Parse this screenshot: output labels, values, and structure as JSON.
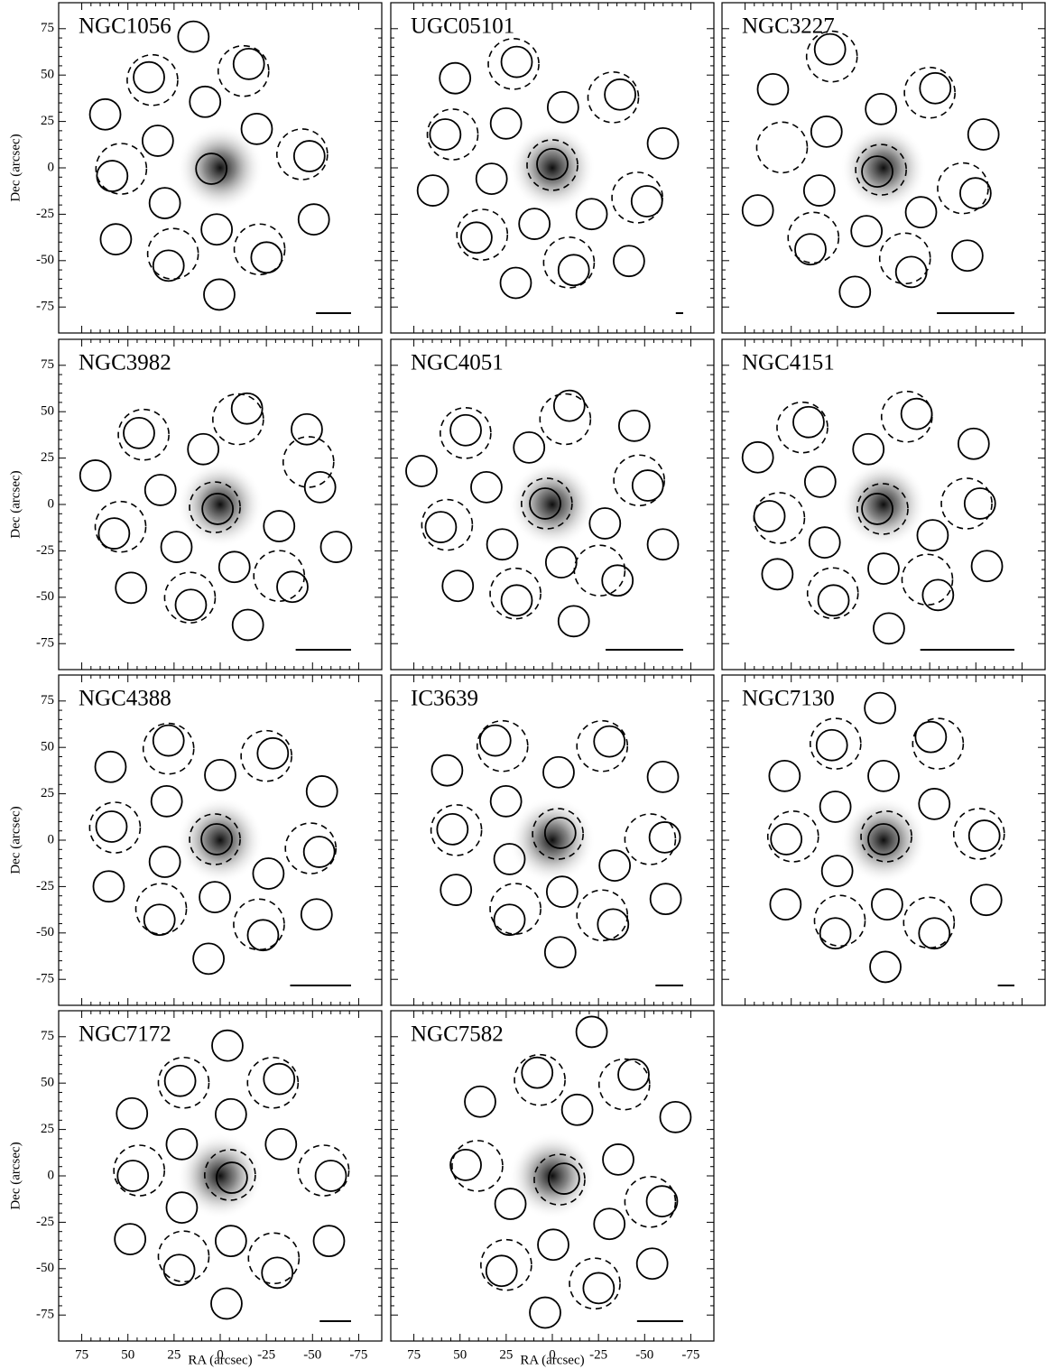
{
  "chart_data": [
    {
      "type": "scatter",
      "title": "NGC1056",
      "ylabel": "Dec (arcsec)",
      "xlim": [
        87.5,
        -87.5
      ],
      "ylim": [
        -89,
        89
      ],
      "xticks": [
        75,
        50,
        25,
        0,
        -25,
        -50,
        -75
      ],
      "yticks": [
        75,
        50,
        25,
        0,
        -25,
        -50,
        -75
      ],
      "aperture_radius": 8.3,
      "background_radius": 13.7,
      "scalebar": 19,
      "apertures": {
        "x": [
          14.5,
          -15.5,
          38.6,
          8.2,
          62.3,
          -19.8,
          33.8,
          -48.3,
          58.5,
          4.8,
          30,
          -50.7,
          56.5,
          1.9,
          -25.1,
          28,
          0.5
        ],
        "y": [
          70.7,
          56,
          48.8,
          35.6,
          28.8,
          21,
          14.6,
          6.3,
          -4.4,
          -0.5,
          -19,
          -27.8,
          -38.5,
          -33.2,
          -48.3,
          -52.7,
          -68.3
        ]
      },
      "backgrounds": {
        "x": [
          36.7,
          -12.6,
          53.6,
          -44.4,
          25.6,
          -21.3
        ],
        "y": [
          47.3,
          52.2,
          -0.5,
          7.3,
          -46.3,
          -43.9
        ]
      }
    },
    {
      "type": "scatter",
      "title": "UGC05101",
      "xlim": [
        87.5,
        -87.5
      ],
      "ylim": [
        -89,
        89
      ],
      "xticks": [
        75,
        50,
        25,
        0,
        -25,
        -50,
        -75
      ],
      "yticks": [
        75,
        50,
        25,
        0,
        -25,
        -50,
        -75
      ],
      "aperture_radius": 8.3,
      "background_radius": 13.7,
      "scalebar": 4,
      "apertures": {
        "x": [
          19.3,
          52.7,
          -5.8,
          25.1,
          -36.7,
          -59.9,
          58,
          0,
          64.7,
          32.9,
          -51.2,
          -21.3,
          9.7,
          41.1,
          -11.6,
          -41.5,
          19.8
        ],
        "y": [
          57.1,
          48.3,
          32.7,
          23.9,
          39.5,
          13.2,
          18,
          2,
          -12.2,
          -5.9,
          -18,
          -24.9,
          -30.2,
          -37.6,
          -55.1,
          -50.2,
          -62
        ]
      },
      "backgrounds": {
        "x": [
          21,
          -33,
          54,
          0,
          -46,
          38,
          -9
        ],
        "y": [
          56,
          38,
          18,
          1.5,
          -16,
          -36,
          -51
        ]
      }
    },
    {
      "type": "scatter",
      "title": "NGC3227",
      "xlim": [
        87.5,
        -87.5
      ],
      "ylim": [
        -89,
        89
      ],
      "xticks": [
        75,
        50,
        25,
        0,
        -25,
        -50,
        -75
      ],
      "yticks": [
        75,
        50,
        25,
        0,
        -25,
        -50,
        -75
      ],
      "aperture_radius": 8.3,
      "background_radius": 13.7,
      "scalebar": 42,
      "apertures": {
        "x": [
          29,
          59.9,
          1.4,
          30.9,
          -54.1,
          -28,
          3.4,
          68.1,
          34.8,
          -49.8,
          -20.3,
          9.2,
          39.6,
          -15,
          -45.4,
          15.5
        ],
        "y": [
          63.9,
          42.4,
          31.7,
          19.5,
          18,
          42.9,
          -2,
          -22.9,
          -12.2,
          -13.7,
          -23.9,
          -34.1,
          -43.9,
          -56.1,
          -47.3,
          -66.8
        ]
      },
      "backgrounds": {
        "x": [
          28,
          -25,
          55,
          1.4,
          -43,
          38,
          -11.6
        ],
        "y": [
          60,
          40.5,
          11,
          -1,
          -11,
          -37.6,
          -48.8
        ]
      }
    },
    {
      "type": "scatter",
      "title": "NGC3982",
      "ylabel": "Dec (arcsec)",
      "xlim": [
        87.5,
        -87.5
      ],
      "ylim": [
        -89,
        89
      ],
      "xticks": [
        75,
        50,
        25,
        0,
        -25,
        -50,
        -75
      ],
      "yticks": [
        75,
        50,
        25,
        0,
        -25,
        -50,
        -75
      ],
      "aperture_radius": 8.3,
      "background_radius": 13.7,
      "scalebar": 30,
      "apertures": {
        "x": [
          -14.5,
          44,
          -46.9,
          9.2,
          67.6,
          32.4,
          -54.1,
          1.4,
          57.5,
          -31.9,
          23.7,
          -62.8,
          -7.7,
          48.3,
          -39.1,
          15.9,
          -15
        ],
        "y": [
          51.7,
          38.5,
          40.5,
          29.8,
          15.6,
          7.8,
          9.3,
          -2.4,
          -15.6,
          -11.7,
          -22.9,
          -22.9,
          -33.7,
          -44.9,
          -44.4,
          -54.1,
          -64.9
        ]
      },
      "backgrounds": {
        "x": [
          -9.7,
          41.5,
          -47.8,
          2.9,
          54,
          -31.9,
          16.4
        ],
        "y": [
          45.9,
          37.6,
          22.9,
          -1.5,
          -12,
          -38.5,
          -50.2
        ]
      }
    },
    {
      "type": "scatter",
      "title": "NGC4051",
      "xlim": [
        87.5,
        -87.5
      ],
      "ylim": [
        -89,
        89
      ],
      "xticks": [
        75,
        50,
        25,
        0,
        -25,
        -50,
        -75
      ],
      "yticks": [
        75,
        50,
        25,
        0,
        -25,
        -50,
        -75
      ],
      "aperture_radius": 8.3,
      "background_radius": 13.7,
      "scalebar": 42,
      "apertures": {
        "x": [
          -9.2,
          46.9,
          -44.4,
          12.6,
          70.9,
          35.7,
          -51.7,
          3.9,
          60.4,
          -28.5,
          27.1,
          -59.9,
          -4.8,
          51.2,
          -35.3,
          19.3,
          -11.6
        ],
        "y": [
          53.2,
          40,
          42.4,
          30.7,
          18,
          9.3,
          10.2,
          0.5,
          -12.2,
          -10.2,
          -21.5,
          -21.5,
          -31.2,
          -43.9,
          -41,
          -51.7,
          -62.9
        ]
      },
      "backgrounds": {
        "x": [
          -7,
          47,
          -47,
          3,
          57,
          -25.6,
          20
        ],
        "y": [
          46,
          38.5,
          13,
          0.5,
          -11,
          -35.6,
          -48
        ]
      }
    },
    {
      "type": "scatter",
      "title": "NGC4151",
      "xlim": [
        87.5,
        -87.5
      ],
      "ylim": [
        -89,
        89
      ],
      "xticks": [
        75,
        50,
        25,
        0,
        -25,
        -50,
        -75
      ],
      "yticks": [
        75,
        50,
        25,
        0,
        -25,
        -50,
        -75
      ],
      "aperture_radius": 8.3,
      "background_radius": 13.7,
      "scalebar": 51,
      "apertures": {
        "x": [
          -17.9,
          40.6,
          -48.8,
          8.2,
          68.1,
          34.3,
          -52.2,
          3.4,
          61.8,
          -26.6,
          31.9,
          -56,
          0,
          57.5,
          -29.5,
          27.1,
          -2.9
        ],
        "y": [
          48.8,
          44.4,
          32.7,
          29.8,
          25.4,
          12.2,
          0.5,
          -2.4,
          -6.3,
          -16.6,
          -20.5,
          -33.2,
          -34.6,
          -37.6,
          -48.8,
          -51.7,
          -66.8
        ]
      },
      "backgrounds": {
        "x": [
          -12.6,
          44,
          -45,
          0.5,
          56.5,
          -23.7,
          27.5
        ],
        "y": [
          47.3,
          41.5,
          0.5,
          -2.4,
          -7.3,
          -40.5,
          -47.8
        ]
      }
    },
    {
      "type": "scatter",
      "title": "NGC4388",
      "ylabel": "Dec (arcsec)",
      "xlim": [
        87.5,
        -87.5
      ],
      "ylim": [
        -89,
        89
      ],
      "xticks": [
        75,
        50,
        25,
        0,
        -25,
        -50,
        -75
      ],
      "yticks": [
        75,
        50,
        25,
        0,
        -25,
        -50,
        -75
      ],
      "aperture_radius": 8.3,
      "background_radius": 13.7,
      "scalebar": 33,
      "apertures": {
        "x": [
          28,
          -28.5,
          59.4,
          0,
          -55.1,
          29,
          58.9,
          1.9,
          -53.6,
          30,
          -26.1,
          60.4,
          2.9,
          -52.2,
          32.9,
          -23.2,
          6.3
        ],
        "y": [
          53.7,
          46.8,
          39.5,
          35.1,
          26.3,
          21,
          7.3,
          0.5,
          -6.3,
          -11.7,
          -18,
          -24.9,
          -30.7,
          -40,
          -42.9,
          -51.2,
          -63.9
        ]
      },
      "backgrounds": {
        "x": [
          28,
          -25,
          57,
          2.9,
          -49,
          32,
          -21
        ],
        "y": [
          49.3,
          45.4,
          6.8,
          0.5,
          -4.4,
          -37,
          -45.4
        ]
      }
    },
    {
      "type": "scatter",
      "title": "IC3639",
      "xlim": [
        87.5,
        -87.5
      ],
      "ylim": [
        -89,
        89
      ],
      "xticks": [
        75,
        50,
        25,
        0,
        -25,
        -50,
        -75
      ],
      "yticks": [
        75,
        50,
        25,
        0,
        -25,
        -50,
        -75
      ],
      "aperture_radius": 8.3,
      "background_radius": 13.7,
      "scalebar": 15,
      "apertures": {
        "x": [
          30.9,
          -30.9,
          57,
          -3.4,
          -59.9,
          25.1,
          54.1,
          -4.3,
          -60.9,
          23.2,
          -33.8,
          52.2,
          -5.3,
          -61.4,
          23.2,
          -32.9,
          -4.3
        ],
        "y": [
          53.7,
          53.2,
          37.6,
          36.6,
          34.1,
          21,
          5.9,
          3.9,
          1.5,
          -10.2,
          -13.7,
          -26.8,
          -27.8,
          -31.7,
          -42.9,
          -45.4,
          -60.4
        ]
      },
      "backgrounds": {
        "x": [
          27,
          -27,
          52,
          -3,
          -53,
          20,
          -27
        ],
        "y": [
          50.7,
          50.7,
          5.4,
          3.4,
          0.5,
          -37,
          -40.5
        ]
      }
    },
    {
      "type": "scatter",
      "title": "NGC7130",
      "xlim": [
        87.5,
        -87.5
      ],
      "ylim": [
        -89,
        89
      ],
      "xticks": [
        75,
        50,
        25,
        0,
        -25,
        -50,
        -75
      ],
      "yticks": [
        75,
        50,
        25,
        0,
        -25,
        -50,
        -75
      ],
      "aperture_radius": 8.3,
      "background_radius": 13.7,
      "scalebar": 9,
      "apertures": {
        "x": [
          1.9,
          28,
          -25.6,
          53.6,
          0,
          26.1,
          -27.5,
          52.7,
          0,
          -54.6,
          25.1,
          53.1,
          -1.9,
          -55.6,
          26.1,
          -27.5,
          -1
        ],
        "y": [
          71.2,
          51.2,
          55.6,
          34.6,
          34.6,
          18,
          19.5,
          0.5,
          0.5,
          2.4,
          -16.6,
          -34.6,
          -34.6,
          -32.2,
          -50.2,
          -50.2,
          -68.3
        ]
      },
      "backgrounds": {
        "x": [
          26,
          -29.5,
          49,
          -1.5,
          -51.7,
          23.7,
          -24.6
        ],
        "y": [
          52,
          52,
          2,
          2,
          3.4,
          -43.4,
          -44.4
        ]
      }
    },
    {
      "type": "scatter",
      "title": "NGC7172",
      "xlabel": "RA (arcsec)",
      "ylabel": "Dec (arcsec)",
      "xlim": [
        87.5,
        -87.5
      ],
      "ylim": [
        -89,
        89
      ],
      "xticks": [
        75,
        50,
        25,
        0,
        -25,
        -50,
        -75
      ],
      "yticks": [
        75,
        50,
        25,
        0,
        -25,
        -50,
        -75
      ],
      "aperture_radius": 8.3,
      "background_radius": 13.7,
      "scalebar": 17,
      "apertures": {
        "x": [
          -3.9,
          21.7,
          -31.9,
          47.8,
          -5.8,
          20.8,
          -32.9,
          47.3,
          -6.3,
          -59.9,
          20.8,
          48.8,
          -5.8,
          -58.9,
          22.2,
          -30.9,
          -3.4
        ],
        "y": [
          70.2,
          51.2,
          52.2,
          33.7,
          33.2,
          17.1,
          17.1,
          0,
          -1,
          0,
          -17.1,
          -34.1,
          -35.1,
          -35.1,
          -50.7,
          -52.2,
          -68.8
        ]
      },
      "backgrounds": {
        "x": [
          19.8,
          -28.5,
          43.9,
          -5.3,
          -56,
          19.8,
          -29
        ],
        "y": [
          50.2,
          50.2,
          2.9,
          0.5,
          2.9,
          -43.4,
          -44.4
        ]
      }
    },
    {
      "type": "scatter",
      "title": "NGC7582",
      "xlabel": "RA (arcsec)",
      "xlim": [
        87.5,
        -87.5
      ],
      "ylim": [
        -89,
        89
      ],
      "xticks": [
        75,
        50,
        25,
        0,
        -25,
        -50,
        -75
      ],
      "yticks": [
        75,
        50,
        25,
        0,
        -25,
        -50,
        -75
      ],
      "aperture_radius": 8.3,
      "background_radius": 13.7,
      "scalebar": 25,
      "apertures": {
        "x": [
          -21.3,
          8.2,
          -44,
          39.1,
          -13.5,
          -66.7,
          46.9,
          -35.7,
          -6.3,
          22.7,
          -59.4,
          -30.9,
          -0.5,
          27.5,
          -54.1,
          -25.1,
          3.9
        ],
        "y": [
          77.6,
          55.6,
          54.6,
          40,
          35.6,
          31.7,
          5.9,
          8.8,
          -1.5,
          -15.1,
          -13.7,
          -25.9,
          -37.1,
          -51.2,
          -47.3,
          -60.5,
          -73.7
        ]
      },
      "backgrounds": {
        "x": [
          6.8,
          -39,
          40.6,
          -3.9,
          -53,
          25,
          -23
        ],
        "y": [
          51.7,
          49.3,
          5.4,
          -2,
          -14,
          -48,
          -58
        ]
      }
    }
  ]
}
